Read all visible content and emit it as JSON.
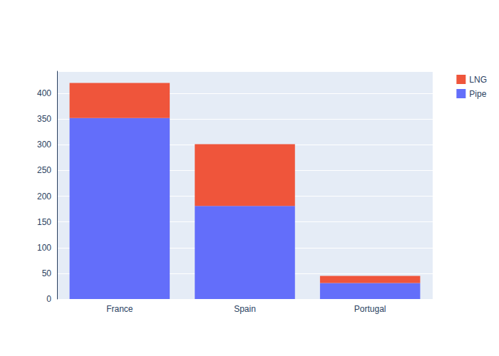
{
  "chart_data": {
    "type": "bar",
    "stacked": true,
    "grid": true,
    "legend": "top-right",
    "categories": [
      "France",
      "Spain",
      "Portugal"
    ],
    "series": [
      {
        "name": "Pipe",
        "color": "#636efa",
        "values": [
          352,
          181,
          31
        ]
      },
      {
        "name": "LNG",
        "color": "#EF553B",
        "values": [
          68,
          120,
          14
        ]
      }
    ],
    "ylim": [
      0,
      443
    ],
    "yticks": [
      0,
      50,
      100,
      150,
      200,
      250,
      300,
      350,
      400
    ]
  }
}
